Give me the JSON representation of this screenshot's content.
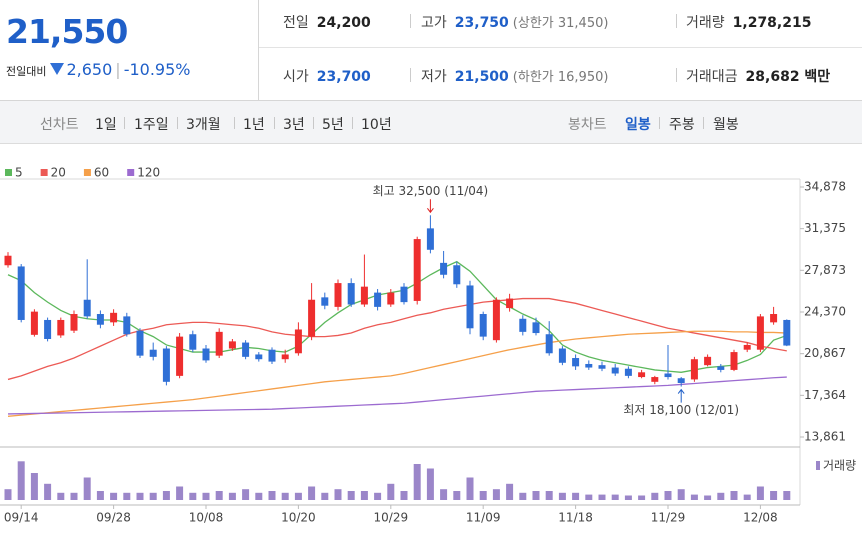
{
  "quote": {
    "price": "21,550",
    "change_label": "전일대비",
    "change": "2,650",
    "change_rate": "-10.95%"
  },
  "summary": {
    "rows": [
      [
        {
          "label": "전일",
          "value": "24,200"
        },
        {
          "label": "고가",
          "value": "23,750",
          "note": "(상한가 31,450)"
        },
        {
          "label": "거래량",
          "value": "1,278,215"
        }
      ],
      [
        {
          "label": "시가",
          "value": "23,700"
        },
        {
          "label": "저가",
          "value": "21,500",
          "note": "(하한가 16,950)"
        },
        {
          "label": "거래대금",
          "value": "28,682 백만"
        }
      ]
    ]
  },
  "tabs": {
    "line_label": "선차트",
    "periods": [
      "1일",
      "1주일",
      "3개월",
      "1년",
      "3년",
      "5년",
      "10년"
    ],
    "candle_label": "봉차트",
    "candle_periods": [
      "일봉",
      "주봉",
      "월봉"
    ]
  },
  "chart_data": {
    "type": "candlestick",
    "categories": [
      null,
      "09/14",
      null,
      null,
      null,
      null,
      null,
      null,
      "09/28",
      null,
      null,
      null,
      null,
      null,
      null,
      "10/08",
      null,
      null,
      null,
      null,
      null,
      null,
      "10/20",
      null,
      null,
      null,
      null,
      null,
      null,
      "10/29",
      null,
      null,
      null,
      null,
      null,
      null,
      "11/09",
      null,
      null,
      null,
      null,
      null,
      null,
      "11/18",
      null,
      null,
      null,
      null,
      null,
      null,
      "11/29",
      null,
      null,
      null,
      null,
      null,
      null,
      "12/08",
      null,
      null
    ],
    "open": [
      28300,
      28200,
      22450,
      23700,
      22400,
      22800,
      25400,
      24200,
      23500,
      24000,
      22800,
      21200,
      21300,
      19000,
      22500,
      21300,
      20700,
      21300,
      21800,
      20800,
      21200,
      20400,
      20900,
      22300,
      25600,
      24800,
      26800,
      25000,
      26000,
      25000,
      26500,
      25300,
      31400,
      28500,
      28300,
      26600,
      24200,
      22000,
      24700,
      23800,
      23500,
      22500,
      21300,
      20500,
      20000,
      19900,
      19700,
      19600,
      18900,
      18500,
      19200,
      18800,
      18700,
      19900,
      19800,
      19500,
      21200,
      21200,
      23500,
      23700
    ],
    "high": [
      29400,
      28400,
      24600,
      23900,
      23900,
      24500,
      28800,
      24500,
      24600,
      24300,
      23000,
      21800,
      21500,
      22600,
      22800,
      21600,
      23000,
      22100,
      22000,
      21000,
      21400,
      21200,
      23500,
      26800,
      26000,
      27100,
      27200,
      29200,
      26300,
      26300,
      26800,
      30700,
      32500,
      29500,
      28600,
      27000,
      24400,
      25600,
      25900,
      24100,
      23900,
      23600,
      21500,
      20800,
      20300,
      20200,
      20000,
      19800,
      19500,
      19000,
      21600,
      18900,
      20600,
      20800,
      20000,
      21200,
      21800,
      24200,
      24800,
      23750
    ],
    "low": [
      28100,
      23500,
      22300,
      21900,
      22200,
      22600,
      23800,
      23000,
      23200,
      22300,
      20500,
      20300,
      18200,
      18800,
      21000,
      20100,
      20500,
      21100,
      20400,
      20200,
      20000,
      20100,
      20700,
      22000,
      24600,
      24500,
      24800,
      24800,
      24500,
      24800,
      25000,
      25000,
      29300,
      27200,
      26400,
      22500,
      22000,
      21800,
      24400,
      22400,
      22400,
      20700,
      19900,
      19500,
      19500,
      19400,
      19000,
      18800,
      18800,
      18300,
      18700,
      18100,
      18500,
      19800,
      19300,
      19400,
      21000,
      21000,
      23300,
      21500
    ],
    "close": [
      29100,
      23700,
      24400,
      22100,
      23700,
      24200,
      24000,
      23300,
      24300,
      22500,
      20700,
      20600,
      18500,
      22300,
      21200,
      20300,
      22700,
      21900,
      20600,
      20400,
      20200,
      20800,
      22900,
      25400,
      24900,
      26800,
      25000,
      26500,
      24800,
      26000,
      25200,
      30500,
      29600,
      27500,
      26700,
      23000,
      22300,
      25400,
      25500,
      22700,
      22600,
      20900,
      20100,
      19800,
      19700,
      19600,
      19200,
      19000,
      19300,
      18900,
      18900,
      18400,
      20400,
      20600,
      19500,
      21000,
      21600,
      24000,
      24200,
      21550
    ],
    "up_color": "#ee2e2e",
    "down_color": "#2f6fd6",
    "series": [
      {
        "name": "5",
        "color": "#5cb85c",
        "values": [
          27500,
          27000,
          26000,
          25200,
          24500,
          24000,
          23800,
          23700,
          23700,
          23500,
          22800,
          22300,
          21600,
          21300,
          21000,
          21000,
          21000,
          21200,
          21400,
          21300,
          21100,
          21000,
          21500,
          22500,
          23500,
          24300,
          25000,
          25400,
          25800,
          26000,
          26200,
          26800,
          27500,
          28100,
          28600,
          27800,
          26600,
          25400,
          24800,
          24200,
          23700,
          22800,
          21600,
          21000,
          20600,
          20300,
          20100,
          19900,
          19700,
          19500,
          19400,
          19300,
          19500,
          19700,
          19800,
          19900,
          20300,
          20800,
          22000,
          22400
        ]
      },
      {
        "name": "20",
        "color": "#ec5a55",
        "values": [
          18700,
          19000,
          19400,
          19800,
          20100,
          20500,
          21000,
          21500,
          22000,
          22500,
          22800,
          23000,
          23300,
          23400,
          23500,
          23500,
          23400,
          23300,
          23200,
          23000,
          22700,
          22500,
          22400,
          22300,
          22300,
          22400,
          22600,
          23000,
          23300,
          23500,
          23800,
          24100,
          24300,
          24600,
          24800,
          25000,
          25200,
          25300,
          25400,
          25500,
          25500,
          25500,
          25300,
          25100,
          24800,
          24500,
          24200,
          23900,
          23600,
          23300,
          23000,
          22800,
          22600,
          22400,
          22200,
          22000,
          21800,
          21500,
          21300,
          21100
        ]
      },
      {
        "name": "60",
        "color": "#f5a04a",
        "values": [
          15600,
          15700,
          15800,
          15900,
          16000,
          16100,
          16200,
          16300,
          16400,
          16500,
          16600,
          16700,
          16800,
          16900,
          17000,
          17150,
          17300,
          17450,
          17600,
          17750,
          17900,
          18050,
          18200,
          18350,
          18500,
          18600,
          18700,
          18800,
          18900,
          19000,
          19200,
          19450,
          19700,
          19950,
          20200,
          20450,
          20700,
          20950,
          21200,
          21400,
          21600,
          21800,
          21950,
          22100,
          22200,
          22300,
          22400,
          22500,
          22550,
          22600,
          22650,
          22700,
          22750,
          22750,
          22750,
          22700,
          22700,
          22650,
          22650,
          22600
        ]
      },
      {
        "name": "120",
        "color": "#9c6bd0",
        "values": [
          15800,
          15820,
          15840,
          15860,
          15880,
          15900,
          15920,
          15940,
          15960,
          15980,
          16000,
          16020,
          16040,
          16060,
          16080,
          16100,
          16120,
          16140,
          16160,
          16180,
          16200,
          16250,
          16300,
          16350,
          16400,
          16450,
          16500,
          16550,
          16600,
          16650,
          16700,
          16800,
          16900,
          17000,
          17100,
          17200,
          17300,
          17400,
          17500,
          17600,
          17700,
          17750,
          17800,
          17850,
          17900,
          17950,
          18000,
          18050,
          18100,
          18150,
          18200,
          18280,
          18360,
          18440,
          18520,
          18600,
          18680,
          18760,
          18840,
          18900
        ]
      }
    ],
    "ylim": [
      13861,
      34878
    ],
    "yticks": [
      {
        "value": 34878,
        "label": "34,878"
      },
      {
        "value": 31375,
        "label": "31,375"
      },
      {
        "value": 27873,
        "label": "27,873"
      },
      {
        "value": 24370,
        "label": "24,370"
      },
      {
        "value": 20867,
        "label": "20,867"
      },
      {
        "value": 17364,
        "label": "17,364"
      },
      {
        "value": 13861,
        "label": "13,861"
      }
    ],
    "volume": {
      "name": "거래량",
      "color": "#9b86c9",
      "ylim": [
        0,
        50
      ],
      "values": [
        12,
        43,
        30,
        18,
        8,
        8,
        25,
        10,
        8,
        8,
        8,
        8,
        10,
        15,
        8,
        8,
        10,
        8,
        12,
        8,
        10,
        8,
        8,
        15,
        8,
        12,
        10,
        10,
        8,
        18,
        10,
        40,
        35,
        12,
        10,
        25,
        10,
        12,
        18,
        8,
        10,
        10,
        8,
        8,
        6,
        6,
        6,
        5,
        5,
        8,
        10,
        12,
        6,
        5,
        8,
        10,
        6,
        15,
        10,
        10
      ]
    },
    "annotations": {
      "high": "최고 32,500 (11/04)",
      "low": "최저 18,100 (12/01)"
    }
  }
}
